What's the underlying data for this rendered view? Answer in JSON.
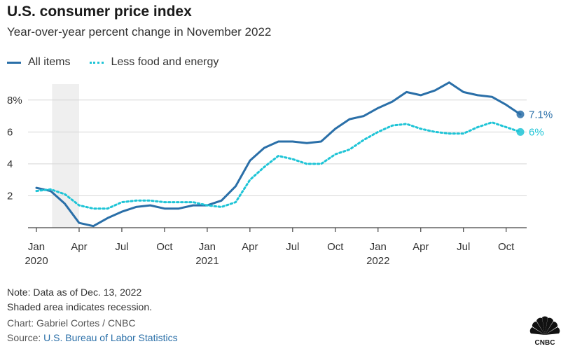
{
  "header": {
    "title": "U.S. consumer price index",
    "subtitle": "Year-over-year percent change in November 2022"
  },
  "legend": {
    "series1": "All items",
    "series2": "Less food and energy"
  },
  "footer": {
    "note1": "Note: Data as of Dec. 13, 2022",
    "note2": "Shaded area indicates recession.",
    "credit": "Chart: Gabriel Cortes / CNBC",
    "source_prefix": "Source: ",
    "source_link": "U.S. Bureau of Labor Statistics",
    "logo_text": "CNBC"
  },
  "colors": {
    "all_items": "#2a6fa8",
    "core": "#1ec4d6",
    "recession": "#efefef",
    "grid": "#d6d6d6",
    "axis": "#444444"
  },
  "chart_data": {
    "type": "line",
    "title": "U.S. consumer price index",
    "subtitle": "Year-over-year percent change in November 2022",
    "xlabel": "",
    "ylabel": "",
    "ylim": [
      0,
      9
    ],
    "y_ticks": [
      2,
      4,
      6,
      8
    ],
    "y_tick_labels": [
      "2",
      "4",
      "6",
      "8%"
    ],
    "x": [
      "2020-01",
      "2020-02",
      "2020-03",
      "2020-04",
      "2020-05",
      "2020-06",
      "2020-07",
      "2020-08",
      "2020-09",
      "2020-10",
      "2020-11",
      "2020-12",
      "2021-01",
      "2021-02",
      "2021-03",
      "2021-04",
      "2021-05",
      "2021-06",
      "2021-07",
      "2021-08",
      "2021-09",
      "2021-10",
      "2021-11",
      "2021-12",
      "2022-01",
      "2022-02",
      "2022-03",
      "2022-04",
      "2022-05",
      "2022-06",
      "2022-07",
      "2022-08",
      "2022-09",
      "2022-10",
      "2022-11"
    ],
    "x_ticks": [
      {
        "x": "2020-01",
        "label": "Jan",
        "year": "2020"
      },
      {
        "x": "2020-04",
        "label": "Apr",
        "year": ""
      },
      {
        "x": "2020-07",
        "label": "Jul",
        "year": ""
      },
      {
        "x": "2020-10",
        "label": "Oct",
        "year": ""
      },
      {
        "x": "2021-01",
        "label": "Jan",
        "year": "2021"
      },
      {
        "x": "2021-04",
        "label": "Apr",
        "year": ""
      },
      {
        "x": "2021-07",
        "label": "Jul",
        "year": ""
      },
      {
        "x": "2021-10",
        "label": "Oct",
        "year": ""
      },
      {
        "x": "2022-01",
        "label": "Jan",
        "year": "2022"
      },
      {
        "x": "2022-04",
        "label": "Apr",
        "year": ""
      },
      {
        "x": "2022-07",
        "label": "Jul",
        "year": ""
      },
      {
        "x": "2022-10",
        "label": "Oct",
        "year": ""
      }
    ],
    "recession": [
      "2020-02",
      "2020-04"
    ],
    "series": [
      {
        "name": "All items",
        "values": [
          2.5,
          2.3,
          1.5,
          0.3,
          0.1,
          0.6,
          1.0,
          1.3,
          1.4,
          1.2,
          1.2,
          1.4,
          1.4,
          1.7,
          2.6,
          4.2,
          5.0,
          5.4,
          5.4,
          5.3,
          5.4,
          6.2,
          6.8,
          7.0,
          7.5,
          7.9,
          8.5,
          8.3,
          8.6,
          9.1,
          8.5,
          8.3,
          8.2,
          7.7,
          7.1
        ],
        "end_label": "7.1%"
      },
      {
        "name": "Less food and energy",
        "values": [
          2.3,
          2.4,
          2.1,
          1.4,
          1.2,
          1.2,
          1.6,
          1.7,
          1.7,
          1.6,
          1.6,
          1.6,
          1.4,
          1.3,
          1.6,
          3.0,
          3.8,
          4.5,
          4.3,
          4.0,
          4.0,
          4.6,
          4.9,
          5.5,
          6.0,
          6.4,
          6.5,
          6.2,
          6.0,
          5.9,
          5.9,
          6.3,
          6.6,
          6.3,
          6.0
        ],
        "end_label": "6%"
      }
    ]
  }
}
